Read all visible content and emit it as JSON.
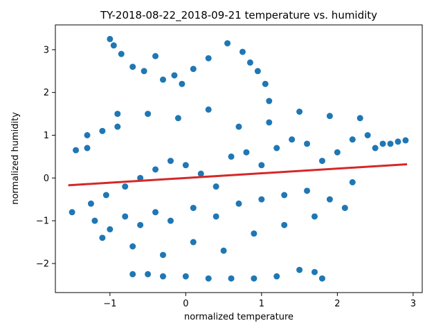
{
  "chart_data": {
    "type": "scatter",
    "title": "TY-2018-08-22_2018-09-21 temperature vs. humidity",
    "xlabel": "normalized temperature",
    "ylabel": "normalized humidity",
    "xlim": [
      -1.72,
      3.12
    ],
    "ylim": [
      -2.68,
      3.58
    ],
    "xticks": [
      -1,
      0,
      1,
      2,
      3
    ],
    "yticks": [
      -2,
      -1,
      0,
      1,
      2,
      3
    ],
    "grid": false,
    "legend": "none",
    "marker_color": "#1f77b4",
    "fit_line_color": "#d62728",
    "fit_line": {
      "x": [
        -1.55,
        2.92
      ],
      "y": [
        -0.17,
        0.32
      ]
    },
    "sample_points": {
      "x": [
        -1.45,
        -1.3,
        -1.1,
        -0.9,
        -1.5,
        -1.25,
        -1.05,
        -0.8,
        -0.6,
        -0.4,
        -0.2,
        0.0,
        0.2,
        0.4,
        0.6,
        0.8,
        1.0,
        1.2,
        1.4,
        1.6,
        1.8,
        2.0,
        2.2,
        2.4,
        2.6,
        2.8,
        2.9,
        -1.0,
        -0.95,
        -0.85,
        -0.7,
        -0.55,
        -0.4,
        -0.3,
        -0.15,
        -0.05,
        0.1,
        0.3,
        0.55,
        0.75,
        0.85,
        0.95,
        1.05,
        1.1,
        -0.7,
        -0.5,
        -0.3,
        0.0,
        0.3,
        0.6,
        0.9,
        1.2,
        1.5,
        1.7,
        1.8,
        -1.2,
        -1.0,
        -0.8,
        -0.6,
        -0.4,
        -0.2,
        0.1,
        0.4,
        0.7,
        1.0,
        1.3,
        1.6,
        1.9,
        2.2,
        2.5,
        2.7,
        -1.3,
        -0.9,
        -0.5,
        -0.1,
        0.3,
        0.7,
        1.1,
        1.5,
        1.9,
        2.3,
        -1.1,
        -0.7,
        -0.3,
        0.1,
        0.5,
        0.9,
        1.3,
        1.7,
        2.1
      ],
      "y": [
        0.65,
        0.7,
        1.1,
        1.2,
        -0.8,
        -0.6,
        -0.4,
        -0.2,
        0.0,
        0.2,
        0.4,
        0.3,
        0.1,
        -0.2,
        0.5,
        0.6,
        0.3,
        0.7,
        0.9,
        0.8,
        0.4,
        0.6,
        0.9,
        1.0,
        0.8,
        0.85,
        0.88,
        3.25,
        3.1,
        2.9,
        2.6,
        2.5,
        2.85,
        2.3,
        2.4,
        2.2,
        2.55,
        2.8,
        3.15,
        2.95,
        2.7,
        2.5,
        2.2,
        1.8,
        -2.25,
        -2.25,
        -2.3,
        -2.3,
        -2.35,
        -2.35,
        -2.35,
        -2.3,
        -2.15,
        -2.2,
        -2.35,
        -1.0,
        -1.2,
        -0.9,
        -1.1,
        -0.8,
        -1.0,
        -0.7,
        -0.9,
        -0.6,
        -0.5,
        -0.4,
        -0.3,
        -0.5,
        -0.1,
        0.7,
        0.8,
        1.0,
        1.5,
        1.5,
        1.4,
        1.6,
        1.2,
        1.3,
        1.55,
        1.45,
        1.4,
        -1.4,
        -1.6,
        -1.8,
        -1.5,
        -1.7,
        -1.3,
        -1.1,
        -0.9,
        -0.7
      ]
    }
  }
}
